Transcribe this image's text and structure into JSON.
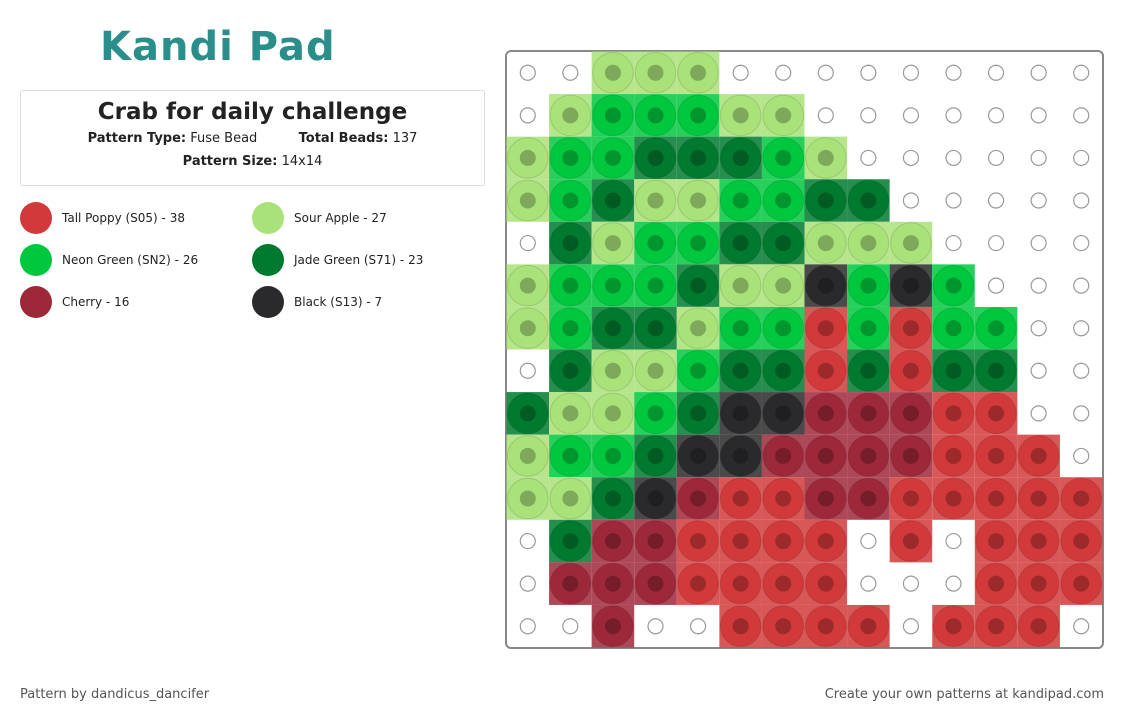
{
  "logo": {
    "text": "Kandi Pad"
  },
  "info": {
    "title": "Crab for daily challenge",
    "pattern_type_label": "Pattern Type:",
    "pattern_type": "Fuse Bead",
    "total_beads_label": "Total Beads:",
    "total_beads": 137,
    "pattern_size_label": "Pattern Size:",
    "pattern_size": "14x14"
  },
  "legend": [
    {
      "label": "Tall Poppy (S05) - 38",
      "color": "#d1393a"
    },
    {
      "label": "Sour Apple - 27",
      "color": "#a9e278"
    },
    {
      "label": "Neon Green (SN2) - 26",
      "color": "#00c83e"
    },
    {
      "label": "Jade Green (S71) - 23",
      "color": "#007a2f"
    },
    {
      "label": "Cherry - 16",
      "color": "#9d2839"
    },
    {
      "label": "Black (S13) - 7",
      "color": "#2a2a2c"
    }
  ],
  "grid": [
    [
      null,
      null,
      1,
      1,
      1,
      null,
      null,
      null,
      null,
      null,
      null,
      null,
      null,
      null
    ],
    [
      null,
      1,
      2,
      2,
      2,
      1,
      1,
      null,
      null,
      null,
      null,
      null,
      null,
      null
    ],
    [
      1,
      2,
      2,
      3,
      3,
      3,
      2,
      1,
      null,
      null,
      null,
      null,
      null,
      null
    ],
    [
      1,
      2,
      3,
      1,
      1,
      2,
      2,
      3,
      3,
      null,
      null,
      null,
      null,
      null
    ],
    [
      null,
      3,
      1,
      2,
      2,
      3,
      3,
      1,
      1,
      1,
      null,
      null,
      null,
      null
    ],
    [
      1,
      2,
      2,
      2,
      3,
      1,
      1,
      5,
      2,
      5,
      2,
      null,
      null,
      null
    ],
    [
      1,
      2,
      3,
      3,
      1,
      2,
      2,
      0,
      2,
      0,
      2,
      2,
      null,
      null
    ],
    [
      null,
      3,
      1,
      1,
      2,
      3,
      3,
      0,
      3,
      0,
      3,
      3,
      null,
      null
    ],
    [
      3,
      1,
      1,
      2,
      3,
      5,
      5,
      4,
      4,
      4,
      0,
      0,
      null,
      null
    ],
    [
      1,
      2,
      2,
      3,
      5,
      5,
      4,
      4,
      4,
      4,
      0,
      0,
      0,
      null
    ],
    [
      1,
      1,
      3,
      5,
      4,
      0,
      0,
      4,
      4,
      0,
      0,
      0,
      0,
      0
    ],
    [
      null,
      3,
      4,
      4,
      0,
      0,
      0,
      0,
      null,
      0,
      null,
      0,
      0,
      0
    ],
    [
      null,
      4,
      4,
      4,
      0,
      0,
      0,
      0,
      null,
      null,
      null,
      0,
      0,
      0
    ],
    [
      null,
      null,
      4,
      null,
      null,
      0,
      0,
      0,
      0,
      null,
      0,
      0,
      0,
      null
    ]
  ],
  "footer": {
    "author": "Pattern by dandicus_dancifer",
    "cta": "Create your own patterns at kandipad.com"
  }
}
